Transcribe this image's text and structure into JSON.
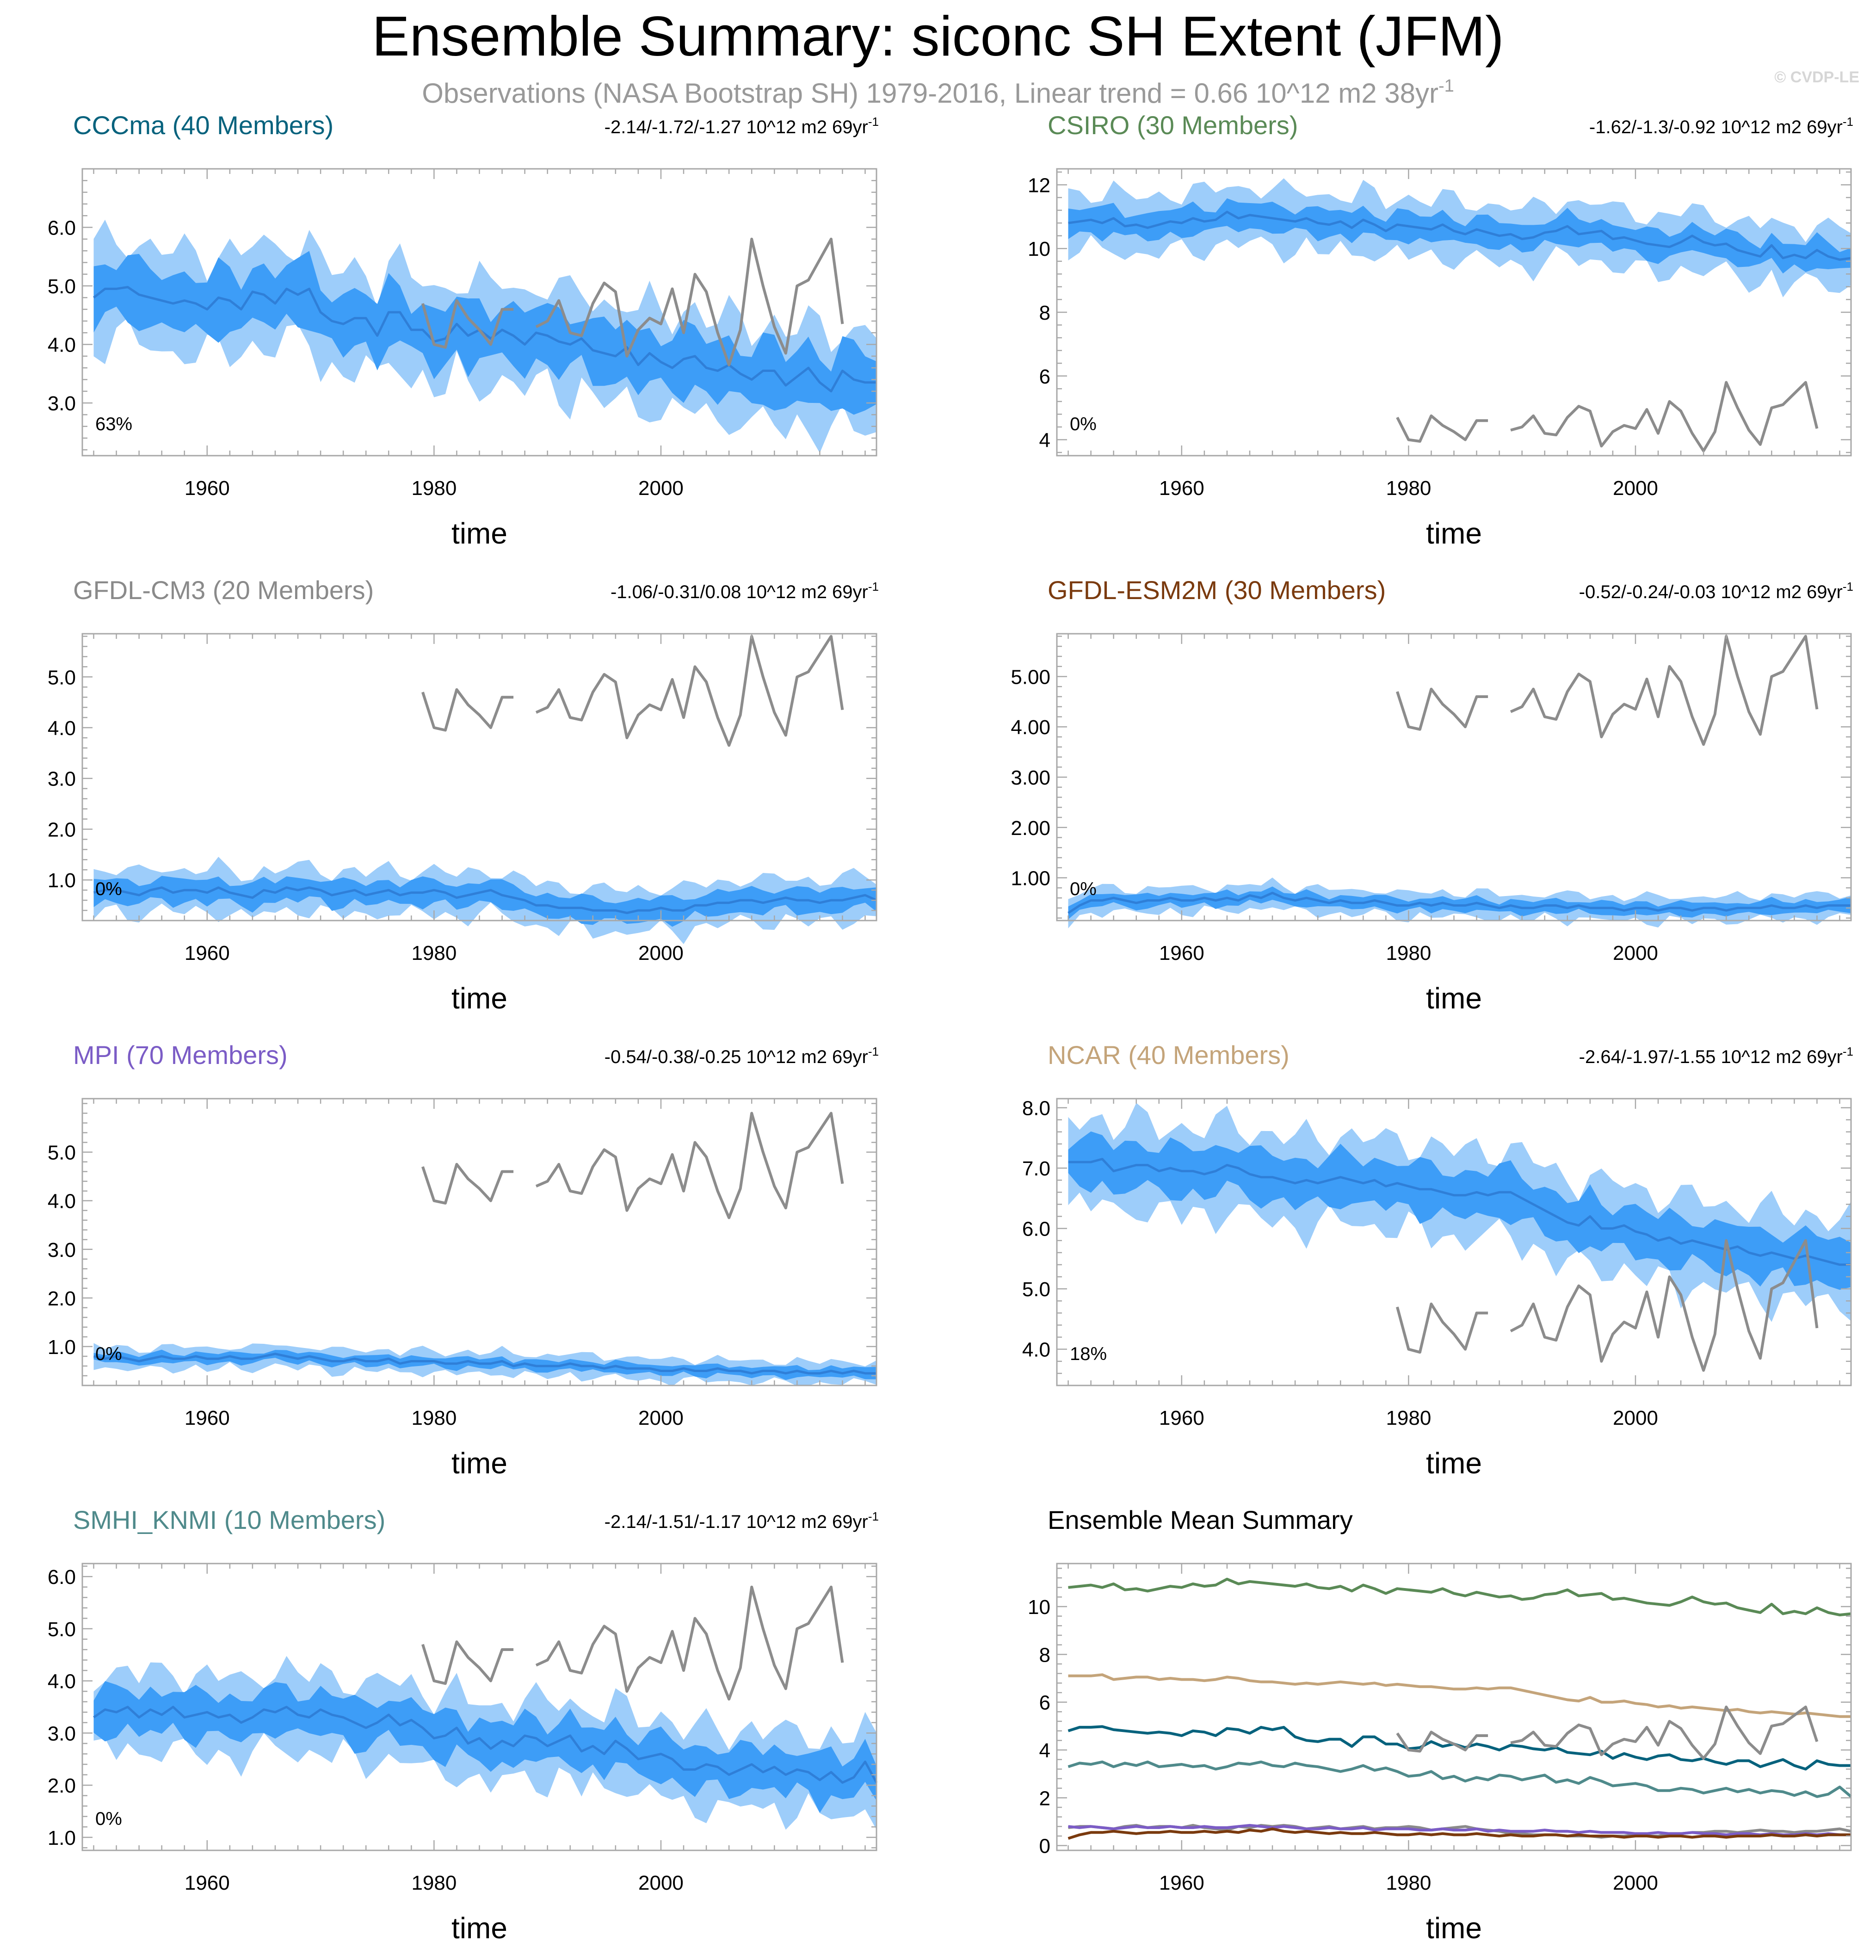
{
  "title": "Ensemble Summary: siconc SH Extent (JFM)",
  "subtitle": {
    "text": "Observations (NASA Bootstrap SH) 1979-2016, Linear trend = 0.66 10^12 m2 38yr",
    "sup": "-1"
  },
  "watermark": "© CVDP-LE",
  "trend_units": "10^12 m2 69yr",
  "trend_sup": "-1",
  "xlabel": "time",
  "colors": {
    "band_outer": "#9dcdfa",
    "band_inner": "#3d9df7",
    "mean_line": "#2f7fd8",
    "obs_line": "#8c8c8c",
    "frame": "#a8a8a8"
  },
  "obs": {
    "name": "NASA Bootstrap SH",
    "years": [
      1979,
      1980,
      1981,
      1982,
      1983,
      1984,
      1985,
      1986,
      1987,
      1988,
      1989,
      1990,
      1991,
      1992,
      1993,
      1994,
      1995,
      1996,
      1997,
      1998,
      1999,
      2000,
      2001,
      2002,
      2003,
      2004,
      2005,
      2006,
      2007,
      2008,
      2009,
      2010,
      2011,
      2012,
      2013,
      2014,
      2015,
      2016
    ],
    "values": [
      4.7,
      4.0,
      3.95,
      4.75,
      4.45,
      4.25,
      4.0,
      4.6,
      4.6,
      null,
      4.3,
      4.4,
      4.75,
      4.2,
      4.15,
      4.7,
      5.05,
      4.9,
      3.8,
      4.25,
      4.45,
      4.35,
      4.95,
      4.2,
      5.2,
      4.9,
      4.2,
      3.65,
      4.25,
      5.8,
      5.0,
      4.3,
      3.85,
      5.0,
      5.1,
      5.45,
      5.8,
      4.35
    ]
  },
  "chart_data": [
    {
      "id": "cccma",
      "type": "line",
      "title": "CCCma (40 Members)",
      "title_color": "#06627d",
      "trend": "-2.14/-1.72/-1.27",
      "percent": "63%",
      "xlim": [
        1949,
        2019
      ],
      "xticks": [
        1960,
        1980,
        2000
      ],
      "ylim": [
        2.1,
        7.0
      ],
      "yticks": [
        3.0,
        4.0,
        5.0,
        6.0
      ],
      "ytick_labels": [
        "3.0",
        "4.0",
        "5.0",
        "6.0"
      ],
      "mean": [
        4.8,
        4.95,
        4.95,
        4.98,
        4.85,
        4.8,
        4.75,
        4.7,
        4.75,
        4.7,
        4.6,
        4.8,
        4.75,
        4.6,
        4.9,
        4.85,
        4.7,
        4.95,
        4.85,
        4.95,
        4.55,
        4.4,
        4.35,
        4.45,
        4.45,
        4.15,
        4.55,
        4.55,
        4.25,
        4.25,
        4.05,
        4.1,
        4.35,
        4.15,
        4.25,
        4.1,
        4.25,
        4.15,
        4.0,
        4.2,
        4.15,
        4.05,
        4.0,
        4.1,
        3.9,
        3.85,
        3.8,
        3.95,
        3.65,
        3.85,
        3.7,
        3.6,
        3.75,
        3.8,
        3.6,
        3.55,
        3.65,
        3.5,
        3.4,
        3.55,
        3.55,
        3.3,
        3.45,
        3.6,
        3.35,
        3.2,
        3.55,
        3.4,
        3.35,
        3.35
      ],
      "inner_half": 0.48,
      "outer_half": 0.85,
      "show_obs": true
    },
    {
      "id": "csiro",
      "type": "line",
      "title": "CSIRO (30 Members)",
      "title_color": "#5a8a56",
      "trend": "-1.62/-1.3/-0.92",
      "percent": "0%",
      "xlim": [
        1949,
        2019
      ],
      "xticks": [
        1960,
        1980,
        2000
      ],
      "ylim": [
        3.5,
        12.5
      ],
      "yticks": [
        4,
        6,
        8,
        10,
        12
      ],
      "ytick_labels": [
        "4",
        "6",
        "8",
        "10",
        "12"
      ],
      "mean": [
        10.8,
        10.85,
        10.9,
        10.8,
        10.95,
        10.7,
        10.75,
        10.65,
        10.75,
        10.85,
        10.8,
        10.95,
        10.85,
        10.9,
        11.15,
        10.95,
        11.05,
        11.0,
        10.95,
        10.9,
        10.85,
        10.95,
        10.8,
        10.75,
        10.85,
        10.65,
        10.9,
        10.75,
        10.55,
        10.75,
        10.7,
        10.65,
        10.6,
        10.75,
        10.55,
        10.45,
        10.6,
        10.5,
        10.4,
        10.45,
        10.3,
        10.35,
        10.5,
        10.55,
        10.7,
        10.45,
        10.5,
        10.55,
        10.3,
        10.35,
        10.25,
        10.15,
        10.1,
        10.05,
        10.2,
        10.4,
        10.2,
        10.1,
        10.15,
        9.95,
        9.85,
        9.75,
        10.1,
        9.7,
        9.8,
        9.7,
        9.95,
        9.75,
        9.65,
        9.7
      ],
      "inner_half": 0.4,
      "outer_half": 0.9,
      "show_obs": true
    },
    {
      "id": "gfdl-cm3",
      "type": "line",
      "title": "GFDL-CM3 (20 Members)",
      "title_color": "#8a8a8a",
      "trend": "-1.06/-0.31/0.08",
      "percent": "0%",
      "xlim": [
        1949,
        2019
      ],
      "xticks": [
        1960,
        1980,
        2000
      ],
      "ylim": [
        0.2,
        5.85
      ],
      "yticks": [
        1.0,
        2.0,
        3.0,
        4.0,
        5.0
      ],
      "ytick_labels": [
        "1.0",
        "2.0",
        "3.0",
        "4.0",
        "5.0"
      ],
      "mean": [
        0.75,
        0.8,
        0.8,
        0.75,
        0.7,
        0.8,
        0.85,
        0.75,
        0.8,
        0.8,
        0.75,
        0.85,
        0.75,
        0.7,
        0.65,
        0.8,
        0.75,
        0.85,
        0.8,
        0.85,
        0.8,
        0.7,
        0.75,
        0.8,
        0.7,
        0.75,
        0.8,
        0.7,
        0.75,
        0.75,
        0.8,
        0.75,
        0.65,
        0.7,
        0.75,
        0.8,
        0.7,
        0.65,
        0.6,
        0.5,
        0.5,
        0.45,
        0.45,
        0.45,
        0.4,
        0.4,
        0.4,
        0.35,
        0.4,
        0.4,
        0.45,
        0.4,
        0.4,
        0.5,
        0.5,
        0.55,
        0.55,
        0.6,
        0.6,
        0.55,
        0.6,
        0.65,
        0.6,
        0.6,
        0.55,
        0.6,
        0.6,
        0.65,
        0.7,
        0.6
      ],
      "inner_half": 0.22,
      "outer_half": 0.42,
      "show_obs": true
    },
    {
      "id": "gfdl-esm2m",
      "type": "line",
      "title": "GFDL-ESM2M (30 Members)",
      "title_color": "#7a3a0e",
      "trend": "-0.52/-0.24/-0.03",
      "percent": "0%",
      "xlim": [
        1949,
        2019
      ],
      "xticks": [
        1960,
        1980,
        2000
      ],
      "ylim": [
        0.15,
        5.85
      ],
      "yticks": [
        1.0,
        2.0,
        3.0,
        4.0,
        5.0
      ],
      "ytick_labels": [
        "1.00",
        "2.00",
        "3.00",
        "4.00",
        "5.00"
      ],
      "mean": [
        0.3,
        0.45,
        0.55,
        0.55,
        0.6,
        0.55,
        0.5,
        0.55,
        0.55,
        0.6,
        0.55,
        0.55,
        0.6,
        0.55,
        0.6,
        0.55,
        0.65,
        0.6,
        0.7,
        0.6,
        0.55,
        0.6,
        0.55,
        0.5,
        0.55,
        0.5,
        0.5,
        0.55,
        0.5,
        0.45,
        0.45,
        0.5,
        0.45,
        0.5,
        0.45,
        0.45,
        0.5,
        0.45,
        0.4,
        0.45,
        0.4,
        0.4,
        0.45,
        0.45,
        0.4,
        0.45,
        0.4,
        0.4,
        0.4,
        0.35,
        0.4,
        0.4,
        0.35,
        0.4,
        0.4,
        0.35,
        0.4,
        0.4,
        0.35,
        0.4,
        0.4,
        0.4,
        0.45,
        0.4,
        0.4,
        0.45,
        0.4,
        0.45,
        0.45,
        0.45
      ],
      "inner_half": 0.12,
      "outer_half": 0.24,
      "show_obs": true
    },
    {
      "id": "mpi",
      "type": "line",
      "title": "MPI (70 Members)",
      "title_color": "#7b5cc6",
      "trend": "-0.54/-0.38/-0.25",
      "percent": "0%",
      "xlim": [
        1949,
        2019
      ],
      "xticks": [
        1960,
        1980,
        2000
      ],
      "ylim": [
        0.2,
        6.1
      ],
      "yticks": [
        1.0,
        2.0,
        3.0,
        4.0,
        5.0
      ],
      "ytick_labels": [
        "1.0",
        "2.0",
        "3.0",
        "4.0",
        "5.0"
      ],
      "mean": [
        0.8,
        0.75,
        0.8,
        0.75,
        0.7,
        0.75,
        0.8,
        0.75,
        0.75,
        0.8,
        0.75,
        0.75,
        0.8,
        0.75,
        0.75,
        0.8,
        0.85,
        0.8,
        0.75,
        0.8,
        0.75,
        0.7,
        0.7,
        0.75,
        0.7,
        0.7,
        0.75,
        0.65,
        0.7,
        0.7,
        0.7,
        0.65,
        0.65,
        0.7,
        0.65,
        0.65,
        0.7,
        0.6,
        0.65,
        0.6,
        0.6,
        0.6,
        0.65,
        0.6,
        0.6,
        0.55,
        0.6,
        0.55,
        0.55,
        0.55,
        0.5,
        0.5,
        0.55,
        0.5,
        0.5,
        0.55,
        0.5,
        0.5,
        0.45,
        0.5,
        0.5,
        0.45,
        0.5,
        0.45,
        0.45,
        0.5,
        0.45,
        0.5,
        0.45,
        0.45
      ],
      "inner_half": 0.1,
      "outer_half": 0.22,
      "show_obs": true
    },
    {
      "id": "ncar",
      "type": "line",
      "title": "NCAR (40 Members)",
      "title_color": "#c4a47a",
      "trend": "-2.64/-1.97/-1.55",
      "percent": "18%",
      "xlim": [
        1949,
        2019
      ],
      "xticks": [
        1960,
        1980,
        2000
      ],
      "ylim": [
        3.4,
        8.15
      ],
      "yticks": [
        4.0,
        5.0,
        6.0,
        7.0,
        8.0
      ],
      "ytick_labels": [
        "4.0",
        "5.0",
        "6.0",
        "7.0",
        "8.0"
      ],
      "mean": [
        7.1,
        7.1,
        7.1,
        7.15,
        6.95,
        7.0,
        7.05,
        7.05,
        6.95,
        7.0,
        6.95,
        6.95,
        6.9,
        6.95,
        7.05,
        7.0,
        6.9,
        6.85,
        6.85,
        6.8,
        6.75,
        6.8,
        6.75,
        6.8,
        6.85,
        6.8,
        6.75,
        6.8,
        6.7,
        6.75,
        6.7,
        6.65,
        6.65,
        6.6,
        6.55,
        6.55,
        6.6,
        6.55,
        6.6,
        6.6,
        6.5,
        6.4,
        6.3,
        6.2,
        6.1,
        6.05,
        6.2,
        6.0,
        6.0,
        6.05,
        5.95,
        5.9,
        5.8,
        5.85,
        5.75,
        5.8,
        5.75,
        5.7,
        5.65,
        5.7,
        5.6,
        5.55,
        5.6,
        5.55,
        5.5,
        5.55,
        5.5,
        5.45,
        5.4,
        5.4
      ],
      "inner_half": 0.38,
      "outer_half": 0.72,
      "show_obs": true
    },
    {
      "id": "smhi-knmi",
      "type": "line",
      "title": "SMHI_KNMI (10 Members)",
      "title_color": "#4f8a8b",
      "trend": "-2.14/-1.51/-1.17",
      "percent": "0%",
      "xlim": [
        1949,
        2019
      ],
      "xticks": [
        1960,
        1980,
        2000
      ],
      "ylim": [
        0.75,
        6.25
      ],
      "yticks": [
        1.0,
        2.0,
        3.0,
        4.0,
        5.0,
        6.0
      ],
      "ytick_labels": [
        "1.0",
        "2.0",
        "3.0",
        "4.0",
        "5.0",
        "6.0"
      ],
      "mean": [
        3.3,
        3.45,
        3.4,
        3.5,
        3.3,
        3.45,
        3.35,
        3.5,
        3.3,
        3.35,
        3.4,
        3.3,
        3.35,
        3.2,
        3.3,
        3.45,
        3.4,
        3.5,
        3.35,
        3.3,
        3.45,
        3.35,
        3.3,
        3.2,
        3.1,
        3.2,
        3.35,
        3.15,
        3.25,
        3.1,
        2.9,
        2.95,
        3.1,
        2.8,
        2.9,
        2.7,
        2.85,
        2.75,
        2.95,
        2.9,
        2.75,
        2.85,
        2.95,
        2.65,
        2.75,
        2.6,
        2.85,
        2.7,
        2.5,
        2.55,
        2.6,
        2.5,
        2.3,
        2.3,
        2.4,
        2.35,
        2.2,
        2.3,
        2.4,
        2.25,
        2.35,
        2.2,
        2.3,
        2.25,
        2.1,
        2.25,
        2.05,
        2.15,
        2.45,
        2.05
      ],
      "inner_half": 0.4,
      "outer_half": 0.75,
      "show_obs": true
    },
    {
      "id": "ensemble-mean-summary",
      "type": "line",
      "title": "Ensemble Mean Summary",
      "title_color": "#000000",
      "xlim": [
        1949,
        2019
      ],
      "xticks": [
        1960,
        1980,
        2000
      ],
      "ylim": [
        -0.2,
        11.8
      ],
      "yticks": [
        0,
        2,
        4,
        6,
        8,
        10
      ],
      "ytick_labels": [
        "0",
        "2",
        "4",
        "6",
        "8",
        "10"
      ],
      "series_ref": [
        "csiro",
        "ncar",
        "cccma",
        "smhi-knmi",
        "gfdl-cm3",
        "mpi",
        "gfdl-esm2m"
      ],
      "show_obs": true
    }
  ]
}
